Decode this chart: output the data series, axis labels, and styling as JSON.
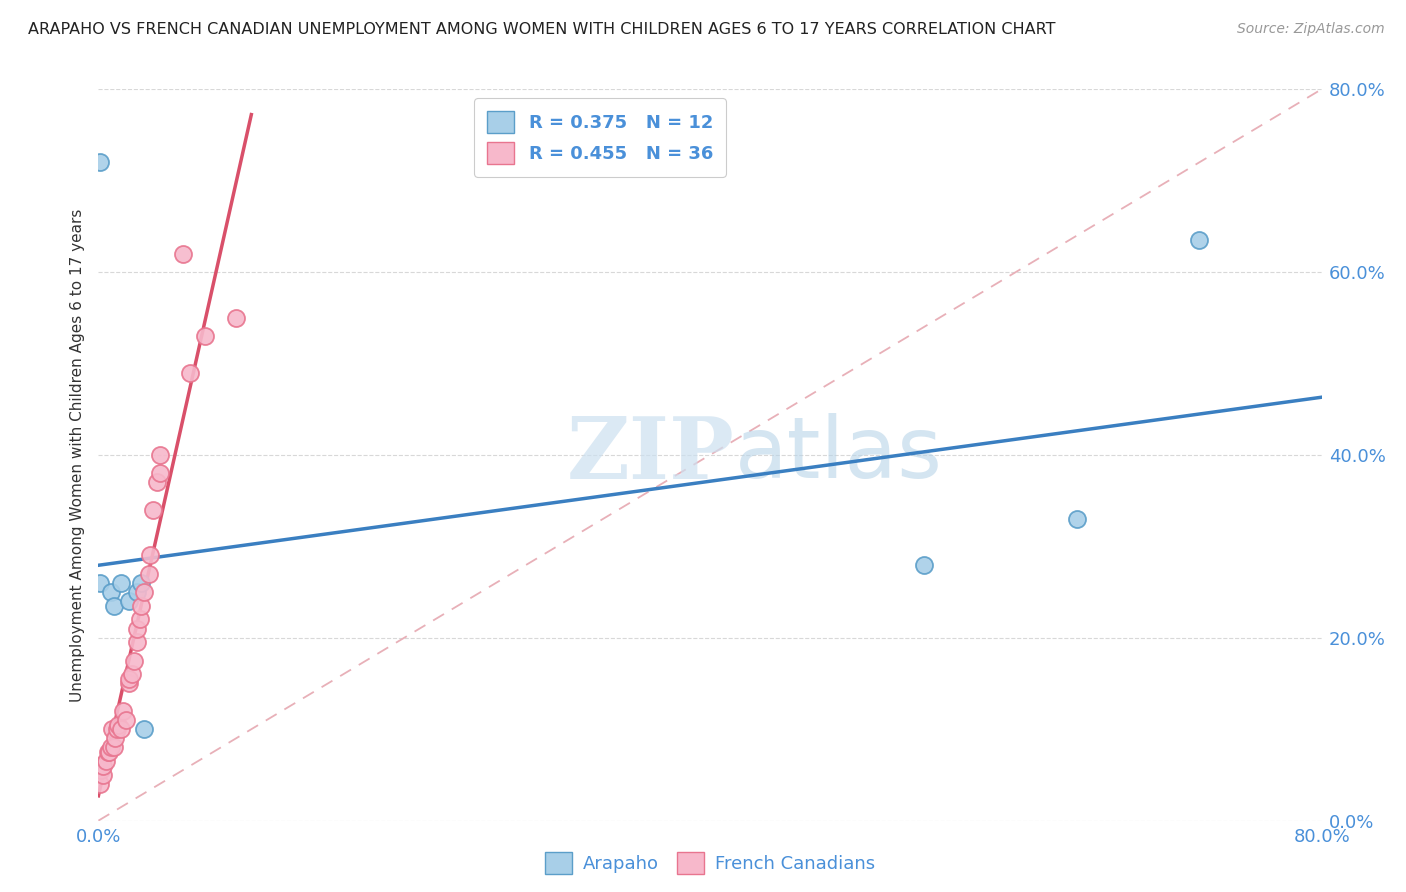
{
  "title": "ARAPAHO VS FRENCH CANADIAN UNEMPLOYMENT AMONG WOMEN WITH CHILDREN AGES 6 TO 17 YEARS CORRELATION CHART",
  "source": "Source: ZipAtlas.com",
  "ylabel": "Unemployment Among Women with Children Ages 6 to 17 years",
  "xlim": [
    0,
    0.8
  ],
  "ylim": [
    0,
    0.8
  ],
  "ytick_values": [
    0.0,
    0.2,
    0.4,
    0.6,
    0.8
  ],
  "ytick_labels": [
    "0.0%",
    "20.0%",
    "40.0%",
    "60.0%",
    "80.0%"
  ],
  "arapaho_color": "#a8cfe8",
  "arapaho_edge": "#5b9ec9",
  "french_color": "#f7b8cb",
  "french_edge": "#e8758f",
  "trend_arapaho": "#3a7fc1",
  "trend_french": "#d9506a",
  "diagonal_color": "#e8b0b8",
  "diagonal_style": "--",
  "legend_R_arapaho": "0.375",
  "legend_N_arapaho": "12",
  "legend_R_french": "0.455",
  "legend_N_french": "36",
  "watermark_zip": "ZIP",
  "watermark_atlas": "atlas",
  "watermark_color": "#cce0f0",
  "arapaho_x": [
    0.001,
    0.001,
    0.008,
    0.01,
    0.015,
    0.02,
    0.025,
    0.028,
    0.03,
    0.54,
    0.64,
    0.72
  ],
  "arapaho_y": [
    0.72,
    0.26,
    0.25,
    0.235,
    0.26,
    0.24,
    0.25,
    0.26,
    0.1,
    0.28,
    0.33,
    0.635
  ],
  "french_x": [
    0.001,
    0.001,
    0.002,
    0.003,
    0.003,
    0.005,
    0.006,
    0.007,
    0.008,
    0.009,
    0.01,
    0.011,
    0.012,
    0.013,
    0.015,
    0.016,
    0.018,
    0.02,
    0.02,
    0.022,
    0.023,
    0.025,
    0.025,
    0.027,
    0.028,
    0.03,
    0.033,
    0.034,
    0.036,
    0.038,
    0.04,
    0.04,
    0.055,
    0.06,
    0.07,
    0.09
  ],
  "french_y": [
    0.04,
    0.06,
    0.055,
    0.05,
    0.06,
    0.065,
    0.075,
    0.075,
    0.08,
    0.1,
    0.08,
    0.09,
    0.1,
    0.105,
    0.1,
    0.12,
    0.11,
    0.15,
    0.155,
    0.16,
    0.175,
    0.195,
    0.21,
    0.22,
    0.235,
    0.25,
    0.27,
    0.29,
    0.34,
    0.37,
    0.38,
    0.4,
    0.62,
    0.49,
    0.53,
    0.55
  ]
}
